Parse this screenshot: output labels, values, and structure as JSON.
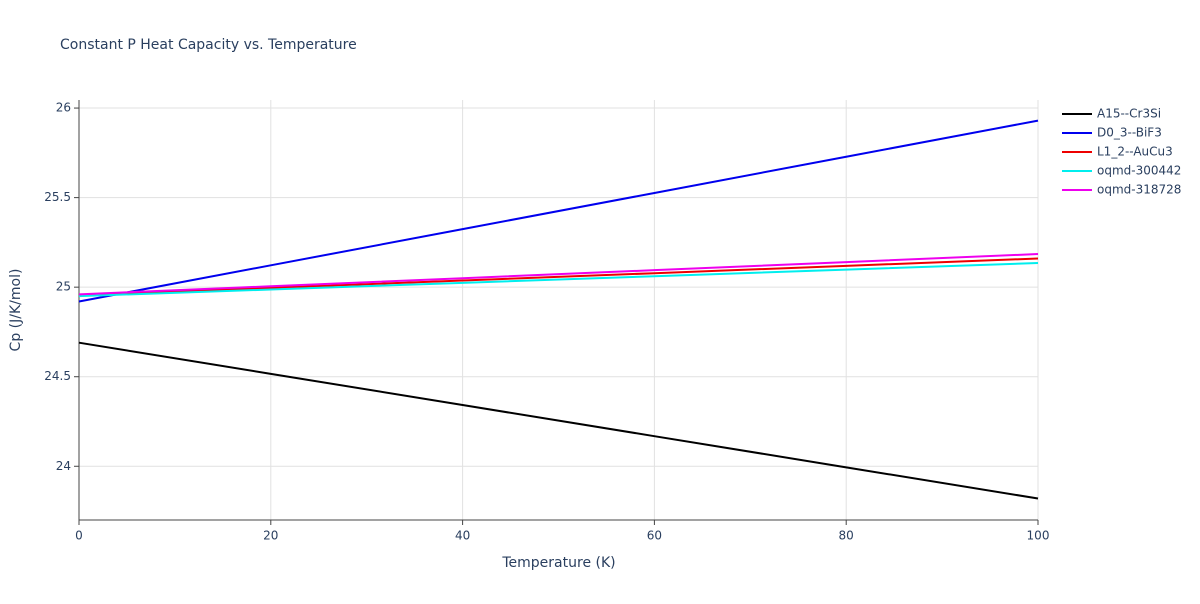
{
  "chart_data": {
    "type": "line",
    "title": "Constant P Heat Capacity vs. Temperature",
    "x_label": "Temperature (K)",
    "y_label": "Cp (J/K/mol)",
    "x": [
      0,
      20,
      40,
      60,
      80,
      100
    ],
    "series": [
      {
        "name": "A15--Cr3Si",
        "color": "#000000",
        "values": [
          24.69,
          24.516,
          24.342,
          24.168,
          23.994,
          23.82
        ]
      },
      {
        "name": "D0_3--BiF3",
        "color": "#0000ee",
        "values": [
          24.92,
          25.122,
          25.324,
          25.526,
          25.728,
          25.93
        ]
      },
      {
        "name": "L1_2--AuCu3",
        "color": "#ee0000",
        "values": [
          24.955,
          24.996,
          25.037,
          25.078,
          25.119,
          25.16
        ]
      },
      {
        "name": "oqmd-300442",
        "color": "#00eeee",
        "values": [
          24.95,
          24.987,
          25.024,
          25.061,
          25.098,
          25.135
        ]
      },
      {
        "name": "oqmd-318728",
        "color": "#ee00ee",
        "values": [
          24.96,
          25.005,
          25.05,
          25.095,
          25.14,
          25.185
        ]
      }
    ],
    "xlim": [
      0,
      100
    ],
    "xticks": [
      0,
      20,
      40,
      60,
      80,
      100
    ],
    "ylim": [
      23.7,
      26.045
    ],
    "yticks": [
      24,
      24.5,
      25,
      25.5,
      26
    ],
    "grid": true,
    "legend": "right"
  }
}
